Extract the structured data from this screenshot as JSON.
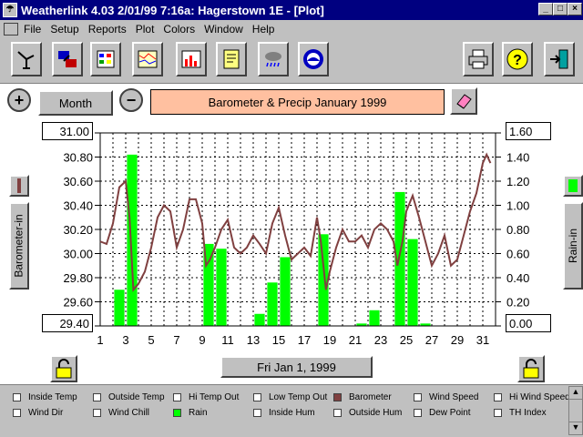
{
  "window": {
    "title": "Weatherlink 4.03   2/01/99   7:16a: Hagerstown 1E - [Plot]"
  },
  "menu": {
    "items": [
      "File",
      "Setup",
      "Reports",
      "Plot",
      "Colors",
      "Window",
      "Help"
    ]
  },
  "toolbar": {
    "icons": [
      "station-icon",
      "download-icon",
      "reports-icon",
      "strip-chart-icon",
      "plot-icon",
      "notes-icon",
      "weather-icon",
      "noaa-icon",
      "print-icon",
      "help-icon",
      "exit-icon"
    ]
  },
  "controls": {
    "zoom_in": "+",
    "zoom_out": "−",
    "period": "Month",
    "date": "Fri Jan 1, 1999"
  },
  "plot": {
    "title": "Barometer & Precip   January 1999",
    "left_axis_label": "Barometer-in",
    "right_axis_label": "Rain-in"
  },
  "legend": {
    "items": [
      {
        "label": "Inside Temp",
        "checked": false
      },
      {
        "label": "Outside Temp",
        "checked": false
      },
      {
        "label": "Hi Temp Out",
        "checked": false
      },
      {
        "label": "Low Temp Out",
        "checked": false
      },
      {
        "label": "Barometer",
        "checked": true,
        "color": "#804040"
      },
      {
        "label": "Wind Speed",
        "checked": false
      },
      {
        "label": "Hi Wind Speed",
        "checked": false
      },
      {
        "label": "Wind Dir",
        "checked": false
      },
      {
        "label": "Wind Chill",
        "checked": false
      },
      {
        "label": "Rain",
        "checked": true,
        "color": "#00ff00"
      },
      {
        "label": "Inside Hum",
        "checked": false
      },
      {
        "label": "Outside Hum",
        "checked": false
      },
      {
        "label": "Dew Point",
        "checked": false
      },
      {
        "label": "TH Index",
        "checked": false
      }
    ]
  },
  "chart_data": {
    "type": "line",
    "title": "Barometer & Precip   January 1999",
    "x_ticks": [
      "1",
      "3",
      "5",
      "7",
      "9",
      "11",
      "13",
      "15",
      "17",
      "19",
      "21",
      "23",
      "25",
      "27",
      "29",
      "31"
    ],
    "xlim": [
      1,
      32
    ],
    "left_axis": {
      "label": "Barometer-in",
      "range": [
        29.4,
        31.0
      ],
      "ticks": [
        "29.40",
        "29.60",
        "29.80",
        "30.00",
        "30.20",
        "30.40",
        "30.60",
        "30.80",
        "31.00"
      ]
    },
    "right_axis": {
      "label": "Rain-in",
      "range": [
        0.0,
        1.6
      ],
      "ticks": [
        "0.00",
        "0.20",
        "0.40",
        "0.60",
        "0.80",
        "1.00",
        "1.20",
        "1.40",
        "1.60"
      ]
    },
    "grid": true,
    "series": [
      {
        "name": "Barometer",
        "axis": "left",
        "color": "#804040",
        "x": [
          1,
          1.5,
          2,
          2.5,
          3,
          3.3,
          3.6,
          4,
          4.5,
          5,
          5.5,
          6,
          6.5,
          7,
          7.5,
          8,
          8.5,
          9,
          9.3,
          9.6,
          10,
          10.5,
          11,
          11.5,
          12,
          12.5,
          13,
          13.5,
          14,
          14.5,
          15,
          15.5,
          16,
          16.5,
          17,
          17.5,
          18,
          18.3,
          18.7,
          19,
          19.5,
          20,
          20.5,
          21,
          21.5,
          22,
          22.5,
          23,
          23.5,
          24,
          24.3,
          24.7,
          25,
          25.5,
          26,
          26.5,
          27,
          27.5,
          28,
          28.5,
          29,
          29.5,
          30,
          30.5,
          31,
          31.3,
          31.6
        ],
        "values": [
          30.1,
          30.08,
          30.25,
          30.55,
          30.6,
          30.3,
          29.7,
          29.75,
          29.85,
          30.05,
          30.3,
          30.4,
          30.35,
          30.05,
          30.2,
          30.45,
          30.45,
          30.25,
          29.9,
          29.95,
          30.05,
          30.2,
          30.28,
          30.05,
          30.0,
          30.05,
          30.15,
          30.08,
          30.0,
          30.25,
          30.38,
          30.15,
          29.95,
          30.0,
          30.05,
          29.98,
          30.3,
          30.1,
          29.7,
          29.85,
          30.05,
          30.2,
          30.1,
          30.1,
          30.15,
          30.05,
          30.2,
          30.25,
          30.2,
          30.1,
          29.9,
          30.1,
          30.35,
          30.48,
          30.3,
          30.1,
          29.9,
          30.0,
          30.15,
          29.9,
          29.95,
          30.15,
          30.35,
          30.5,
          30.75,
          30.82,
          30.75
        ]
      },
      {
        "name": "Rain",
        "axis": "right",
        "color": "#00ff00",
        "x": [
          3,
          4,
          10,
          11,
          14,
          15,
          16,
          19,
          22,
          23,
          25,
          26,
          27
        ],
        "values": [
          0.3,
          1.42,
          0.68,
          0.64,
          0.1,
          0.36,
          0.57,
          0.76,
          0.02,
          0.13,
          1.11,
          0.72,
          0.02
        ]
      }
    ]
  }
}
